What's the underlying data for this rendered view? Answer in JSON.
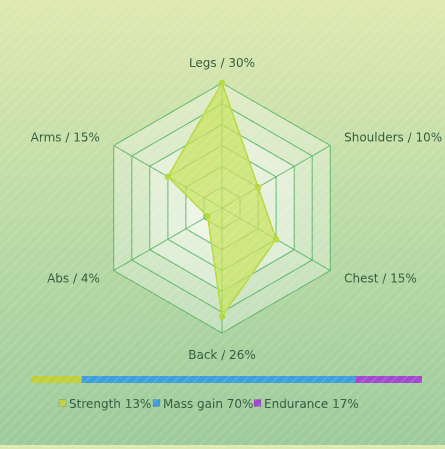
{
  "chart_data": {
    "type": "radar",
    "categories": [
      "Legs",
      "Shoulders",
      "Chest",
      "Back",
      "Abs",
      "Arms"
    ],
    "axis_labels": [
      "Legs / 30%",
      "Shoulders / 10%",
      "Chest / 15%",
      "Back / 26%",
      "Abs / 4%",
      "Arms / 15%"
    ],
    "values": [
      30,
      10,
      15,
      26,
      4,
      15
    ],
    "rmax": 30,
    "grid_levels": 6,
    "fill_color": "#c6e25a",
    "stroke_color": "#b5d93a",
    "grid_color": "#4cae5a",
    "label_color": "#2f5a3c",
    "legend": [
      {
        "label": "Strength 13%",
        "value": 13,
        "color": "#c2cf3c"
      },
      {
        "label": "Mass gain 70%",
        "value": 70,
        "color": "#3f9fda"
      },
      {
        "label": "Endurance 17%",
        "value": 17,
        "color": "#a349d0"
      }
    ]
  }
}
